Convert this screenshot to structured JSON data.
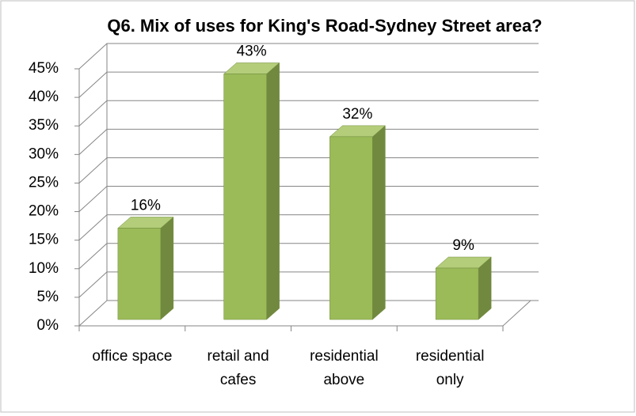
{
  "chart_data": {
    "type": "bar",
    "title": "Q6. Mix of uses for King's Road-Sydney Street area?",
    "categories": [
      "office space",
      "retail and cafes",
      "residential above",
      "residential only"
    ],
    "values": [
      16,
      43,
      32,
      9
    ],
    "value_labels": [
      "16%",
      "43%",
      "32%",
      "9%"
    ],
    "color": "#9bbb59",
    "ylim": [
      0,
      45
    ],
    "yticks": [
      {
        "value": 0,
        "label": "0%"
      },
      {
        "value": 5,
        "label": "5%"
      },
      {
        "value": 10,
        "label": "10%"
      },
      {
        "value": 15,
        "label": "15%"
      },
      {
        "value": 20,
        "label": "20%"
      },
      {
        "value": 25,
        "label": "25%"
      },
      {
        "value": 30,
        "label": "30%"
      },
      {
        "value": 35,
        "label": "35%"
      },
      {
        "value": 40,
        "label": "40%"
      },
      {
        "value": 45,
        "label": "45%"
      }
    ],
    "grid": true
  }
}
